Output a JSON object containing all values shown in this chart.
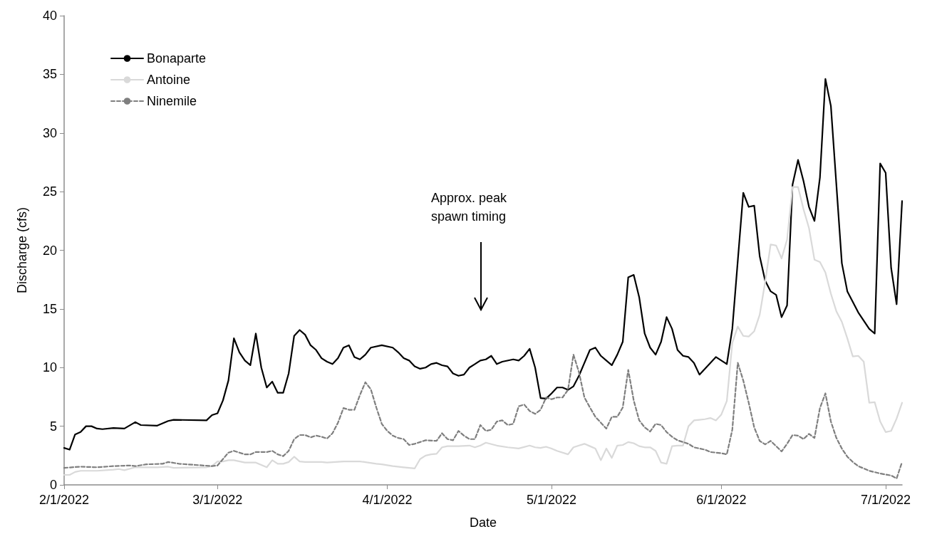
{
  "chart_data": {
    "type": "line",
    "xlabel": "Date",
    "ylabel": "Discharge (cfs)",
    "xlim": [
      "2022-02-01",
      "2022-07-04"
    ],
    "xticks": [
      {
        "value": "2022-02-01",
        "label": "2/1/2022"
      },
      {
        "value": "2022-03-01",
        "label": "3/1/2022"
      },
      {
        "value": "2022-04-01",
        "label": "4/1/2022"
      },
      {
        "value": "2022-05-01",
        "label": "5/1/2022"
      },
      {
        "value": "2022-06-01",
        "label": "6/1/2022"
      },
      {
        "value": "2022-07-01",
        "label": "7/1/2022"
      }
    ],
    "ylim": [
      0,
      40
    ],
    "yticks": [
      0,
      5,
      10,
      15,
      20,
      25,
      30,
      35,
      40
    ],
    "grid": false,
    "legend": "top left",
    "marker": "none",
    "annotations": [
      "Approx. peak spawn timing"
    ],
    "series": [
      {
        "name": "Bonaparte",
        "color": "#000000",
        "line_style": "solid",
        "x": [
          "2022-02-01",
          "2022-02-02",
          "2022-02-03",
          "2022-02-04",
          "2022-02-05",
          "2022-02-06",
          "2022-02-07",
          "2022-02-08",
          "2022-02-10",
          "2022-02-12",
          "2022-02-14",
          "2022-02-15",
          "2022-02-18",
          "2022-02-20",
          "2022-02-21",
          "2022-02-27",
          "2022-02-28",
          "2022-03-01",
          "2022-03-02",
          "2022-03-03",
          "2022-03-04",
          "2022-03-05",
          "2022-03-06",
          "2022-03-07",
          "2022-03-08",
          "2022-03-09",
          "2022-03-10",
          "2022-03-11",
          "2022-03-12",
          "2022-03-13",
          "2022-03-14",
          "2022-03-15",
          "2022-03-16",
          "2022-03-17",
          "2022-03-18",
          "2022-03-19",
          "2022-03-20",
          "2022-03-21",
          "2022-03-22",
          "2022-03-23",
          "2022-03-24",
          "2022-03-25",
          "2022-03-26",
          "2022-03-27",
          "2022-03-28",
          "2022-03-29",
          "2022-03-31",
          "2022-04-02",
          "2022-04-03",
          "2022-04-04",
          "2022-04-05",
          "2022-04-06",
          "2022-04-07",
          "2022-04-08",
          "2022-04-09",
          "2022-04-10",
          "2022-04-11",
          "2022-04-12",
          "2022-04-13",
          "2022-04-14",
          "2022-04-15",
          "2022-04-16",
          "2022-04-17",
          "2022-04-18",
          "2022-04-19",
          "2022-04-20",
          "2022-04-21",
          "2022-04-22",
          "2022-04-24",
          "2022-04-25",
          "2022-04-26",
          "2022-04-27",
          "2022-04-28",
          "2022-04-29",
          "2022-04-30",
          "2022-05-01",
          "2022-05-02",
          "2022-05-03",
          "2022-05-04",
          "2022-05-05",
          "2022-05-06",
          "2022-05-07",
          "2022-05-08",
          "2022-05-09",
          "2022-05-10",
          "2022-05-11",
          "2022-05-12",
          "2022-05-13",
          "2022-05-14",
          "2022-05-15",
          "2022-05-16",
          "2022-05-17",
          "2022-05-18",
          "2022-05-19",
          "2022-05-20",
          "2022-05-21",
          "2022-05-22",
          "2022-05-23",
          "2022-05-24",
          "2022-05-25",
          "2022-05-26",
          "2022-05-27",
          "2022-05-28",
          "2022-05-29",
          "2022-05-30",
          "2022-05-31",
          "2022-06-01",
          "2022-06-02",
          "2022-06-03",
          "2022-06-05",
          "2022-06-06",
          "2022-06-07",
          "2022-06-08",
          "2022-06-09",
          "2022-06-10",
          "2022-06-11",
          "2022-06-12",
          "2022-06-13",
          "2022-06-14",
          "2022-06-15",
          "2022-06-16",
          "2022-06-17",
          "2022-06-18",
          "2022-06-19",
          "2022-06-20",
          "2022-06-21",
          "2022-06-23",
          "2022-06-24",
          "2022-06-26",
          "2022-06-28",
          "2022-06-29",
          "2022-06-30",
          "2022-07-01",
          "2022-07-02",
          "2022-07-03",
          "2022-07-04"
        ],
        "values": [
          3.15,
          3.0,
          4.3,
          4.5,
          5.0,
          5.0,
          4.8,
          4.75,
          4.85,
          4.8,
          5.35,
          5.1,
          5.05,
          5.45,
          5.55,
          5.5,
          5.95,
          6.1,
          7.2,
          8.9,
          12.5,
          11.3,
          10.6,
          10.2,
          12.9,
          10.0,
          8.3,
          8.8,
          7.85,
          7.85,
          9.5,
          12.7,
          13.2,
          12.8,
          11.9,
          11.5,
          10.8,
          10.5,
          10.3,
          10.8,
          11.7,
          11.9,
          10.9,
          10.7,
          11.1,
          11.7,
          11.9,
          11.7,
          11.3,
          10.8,
          10.6,
          10.1,
          9.9,
          10.0,
          10.3,
          10.4,
          10.2,
          10.1,
          9.5,
          9.3,
          9.4,
          10.0,
          10.3,
          10.6,
          10.7,
          11.0,
          10.3,
          10.5,
          10.7,
          10.6,
          11.0,
          11.6,
          10.0,
          7.4,
          7.35,
          7.8,
          8.3,
          8.3,
          8.1,
          8.4,
          9.3,
          10.4,
          11.5,
          11.7,
          11.0,
          10.6,
          10.2,
          11.1,
          12.2,
          17.7,
          17.9,
          16.0,
          12.9,
          11.7,
          11.1,
          12.2,
          14.3,
          13.3,
          11.5,
          11.0,
          10.9,
          10.4,
          9.4,
          9.9,
          10.4,
          10.9,
          10.6,
          10.3,
          13.3,
          24.9,
          23.7,
          23.8,
          19.5,
          17.4,
          16.5,
          16.2,
          14.3,
          15.3,
          25.6,
          27.7,
          25.9,
          23.7,
          22.5,
          26.2,
          34.6,
          32.3,
          18.9,
          16.5,
          14.7,
          13.3,
          12.9,
          27.4,
          26.6,
          18.5,
          15.4,
          24.2
        ]
      },
      {
        "name": "Antoine",
        "color": "#d9d9d9",
        "line_style": "solid",
        "x": [
          "2022-02-01",
          "2022-02-02",
          "2022-02-03",
          "2022-02-04",
          "2022-02-07",
          "2022-02-10",
          "2022-02-11",
          "2022-02-12",
          "2022-02-14",
          "2022-02-18",
          "2022-02-20",
          "2022-02-21",
          "2022-02-27",
          "2022-02-28",
          "2022-03-01",
          "2022-03-02",
          "2022-03-03",
          "2022-03-04",
          "2022-03-06",
          "2022-03-08",
          "2022-03-09",
          "2022-03-10",
          "2022-03-11",
          "2022-03-12",
          "2022-03-13",
          "2022-03-14",
          "2022-03-15",
          "2022-03-16",
          "2022-03-17",
          "2022-03-20",
          "2022-03-21",
          "2022-03-24",
          "2022-03-27",
          "2022-03-30",
          "2022-03-31",
          "2022-04-02",
          "2022-04-04",
          "2022-04-05",
          "2022-04-06",
          "2022-04-07",
          "2022-04-08",
          "2022-04-09",
          "2022-04-10",
          "2022-04-11",
          "2022-04-12",
          "2022-04-14",
          "2022-04-16",
          "2022-04-17",
          "2022-04-18",
          "2022-04-19",
          "2022-04-21",
          "2022-04-23",
          "2022-04-25",
          "2022-04-27",
          "2022-04-28",
          "2022-04-29",
          "2022-04-30",
          "2022-05-01",
          "2022-05-02",
          "2022-05-04",
          "2022-05-05",
          "2022-05-06",
          "2022-05-07",
          "2022-05-08",
          "2022-05-09",
          "2022-05-10",
          "2022-05-11",
          "2022-05-12",
          "2022-05-13",
          "2022-05-14",
          "2022-05-15",
          "2022-05-16",
          "2022-05-17",
          "2022-05-18",
          "2022-05-19",
          "2022-05-20",
          "2022-05-21",
          "2022-05-22",
          "2022-05-23",
          "2022-05-24",
          "2022-05-25",
          "2022-05-26",
          "2022-05-27",
          "2022-05-28",
          "2022-05-29",
          "2022-05-30",
          "2022-05-31",
          "2022-06-01",
          "2022-06-02",
          "2022-06-03",
          "2022-06-04",
          "2022-06-05",
          "2022-06-06",
          "2022-06-07",
          "2022-06-08",
          "2022-06-09",
          "2022-06-10",
          "2022-06-11",
          "2022-06-12",
          "2022-06-13",
          "2022-06-14",
          "2022-06-15",
          "2022-06-16",
          "2022-06-17",
          "2022-06-18",
          "2022-06-19",
          "2022-06-20",
          "2022-06-21",
          "2022-06-22",
          "2022-06-23",
          "2022-06-24",
          "2022-06-25",
          "2022-06-26",
          "2022-06-27",
          "2022-06-28",
          "2022-06-29",
          "2022-06-30",
          "2022-07-01",
          "2022-07-02",
          "2022-07-03",
          "2022-07-04"
        ],
        "values": [
          0.85,
          0.85,
          1.1,
          1.2,
          1.2,
          1.3,
          1.35,
          1.25,
          1.5,
          1.5,
          1.55,
          1.45,
          1.5,
          1.6,
          2.0,
          2.0,
          2.1,
          2.1,
          1.9,
          1.9,
          1.7,
          1.5,
          2.1,
          1.8,
          1.8,
          1.95,
          2.4,
          2.0,
          1.95,
          1.95,
          1.9,
          2.0,
          2.0,
          1.8,
          1.75,
          1.6,
          1.5,
          1.45,
          1.4,
          2.2,
          2.5,
          2.6,
          2.65,
          3.2,
          3.3,
          3.3,
          3.35,
          3.2,
          3.35,
          3.6,
          3.35,
          3.2,
          3.1,
          3.35,
          3.2,
          3.15,
          3.25,
          3.1,
          2.9,
          2.6,
          3.2,
          3.35,
          3.5,
          3.3,
          3.1,
          2.1,
          3.1,
          2.3,
          3.35,
          3.4,
          3.65,
          3.55,
          3.3,
          3.2,
          3.2,
          2.9,
          1.9,
          1.8,
          3.3,
          3.35,
          3.35,
          5.0,
          5.5,
          5.55,
          5.6,
          5.7,
          5.5,
          6.0,
          7.15,
          12.1,
          13.5,
          12.7,
          12.65,
          13.1,
          14.5,
          17.3,
          20.5,
          20.4,
          19.3,
          20.9,
          25.4,
          25.4,
          23.5,
          21.9,
          19.2,
          19.0,
          18.1,
          16.3,
          14.8,
          13.9,
          12.5,
          10.95,
          11.0,
          10.5,
          7.0,
          7.05,
          5.4,
          4.5,
          4.6,
          5.65,
          7.0
        ]
      },
      {
        "name": "Ninemile",
        "color": "#7f7f7f",
        "line_style": "dashed",
        "x": [
          "2022-02-01",
          "2022-02-04",
          "2022-02-07",
          "2022-02-10",
          "2022-02-13",
          "2022-02-14",
          "2022-02-16",
          "2022-02-19",
          "2022-02-20",
          "2022-02-22",
          "2022-02-25",
          "2022-02-28",
          "2022-03-01",
          "2022-03-02",
          "2022-03-03",
          "2022-03-04",
          "2022-03-05",
          "2022-03-06",
          "2022-03-07",
          "2022-03-08",
          "2022-03-10",
          "2022-03-11",
          "2022-03-12",
          "2022-03-13",
          "2022-03-14",
          "2022-03-15",
          "2022-03-16",
          "2022-03-17",
          "2022-03-18",
          "2022-03-19",
          "2022-03-20",
          "2022-03-21",
          "2022-03-22",
          "2022-03-23",
          "2022-03-24",
          "2022-03-25",
          "2022-03-26",
          "2022-03-27",
          "2022-03-28",
          "2022-03-29",
          "2022-03-30",
          "2022-03-31",
          "2022-04-01",
          "2022-04-02",
          "2022-04-03",
          "2022-04-04",
          "2022-04-05",
          "2022-04-06",
          "2022-04-07",
          "2022-04-08",
          "2022-04-10",
          "2022-04-11",
          "2022-04-12",
          "2022-04-13",
          "2022-04-14",
          "2022-04-15",
          "2022-04-16",
          "2022-04-17",
          "2022-04-18",
          "2022-04-19",
          "2022-04-20",
          "2022-04-21",
          "2022-04-22",
          "2022-04-23",
          "2022-04-24",
          "2022-04-25",
          "2022-04-26",
          "2022-04-27",
          "2022-04-28",
          "2022-04-29",
          "2022-04-30",
          "2022-05-01",
          "2022-05-02",
          "2022-05-03",
          "2022-05-04",
          "2022-05-05",
          "2022-05-06",
          "2022-05-07",
          "2022-05-08",
          "2022-05-09",
          "2022-05-10",
          "2022-05-11",
          "2022-05-12",
          "2022-05-13",
          "2022-05-14",
          "2022-05-15",
          "2022-05-16",
          "2022-05-17",
          "2022-05-18",
          "2022-05-19",
          "2022-05-20",
          "2022-05-21",
          "2022-05-22",
          "2022-05-23",
          "2022-05-24",
          "2022-05-26",
          "2022-05-27",
          "2022-05-29",
          "2022-05-30",
          "2022-06-01",
          "2022-06-02",
          "2022-06-03",
          "2022-06-04",
          "2022-06-05",
          "2022-06-06",
          "2022-06-07",
          "2022-06-08",
          "2022-06-09",
          "2022-06-10",
          "2022-06-11",
          "2022-06-12",
          "2022-06-13",
          "2022-06-14",
          "2022-06-15",
          "2022-06-16",
          "2022-06-17",
          "2022-06-18",
          "2022-06-19",
          "2022-06-20",
          "2022-06-21",
          "2022-06-22",
          "2022-06-23",
          "2022-06-24",
          "2022-06-25",
          "2022-06-26",
          "2022-06-28",
          "2022-06-30",
          "2022-07-02",
          "2022-07-03",
          "2022-07-04"
        ],
        "values": [
          1.45,
          1.55,
          1.5,
          1.6,
          1.65,
          1.6,
          1.75,
          1.8,
          1.95,
          1.8,
          1.7,
          1.6,
          1.65,
          2.2,
          2.75,
          2.9,
          2.75,
          2.6,
          2.6,
          2.8,
          2.8,
          2.9,
          2.6,
          2.45,
          2.9,
          3.9,
          4.25,
          4.25,
          4.05,
          4.2,
          4.1,
          3.95,
          4.4,
          5.3,
          6.55,
          6.4,
          6.4,
          7.65,
          8.75,
          8.15,
          6.6,
          5.2,
          4.6,
          4.2,
          4.0,
          3.9,
          3.4,
          3.5,
          3.65,
          3.8,
          3.75,
          4.4,
          3.9,
          3.8,
          4.6,
          4.2,
          3.9,
          3.9,
          5.1,
          4.6,
          4.7,
          5.4,
          5.5,
          5.1,
          5.2,
          6.7,
          6.85,
          6.3,
          6.05,
          6.4,
          7.45,
          7.3,
          7.45,
          7.45,
          8.1,
          11.1,
          9.6,
          7.45,
          6.6,
          5.8,
          5.3,
          4.8,
          5.8,
          5.8,
          6.6,
          9.8,
          7.2,
          5.5,
          4.9,
          4.55,
          5.2,
          5.1,
          4.5,
          4.1,
          3.8,
          3.5,
          3.2,
          3.0,
          2.8,
          2.7,
          2.6,
          4.7,
          10.4,
          8.9,
          7.0,
          4.9,
          3.75,
          3.45,
          3.75,
          3.3,
          2.85,
          3.5,
          4.25,
          4.2,
          3.9,
          4.35,
          4.0,
          6.55,
          7.8,
          5.4,
          4.0,
          3.1,
          2.4,
          1.95,
          1.6,
          1.2,
          0.97,
          0.8,
          0.55,
          1.95
        ]
      }
    ]
  }
}
